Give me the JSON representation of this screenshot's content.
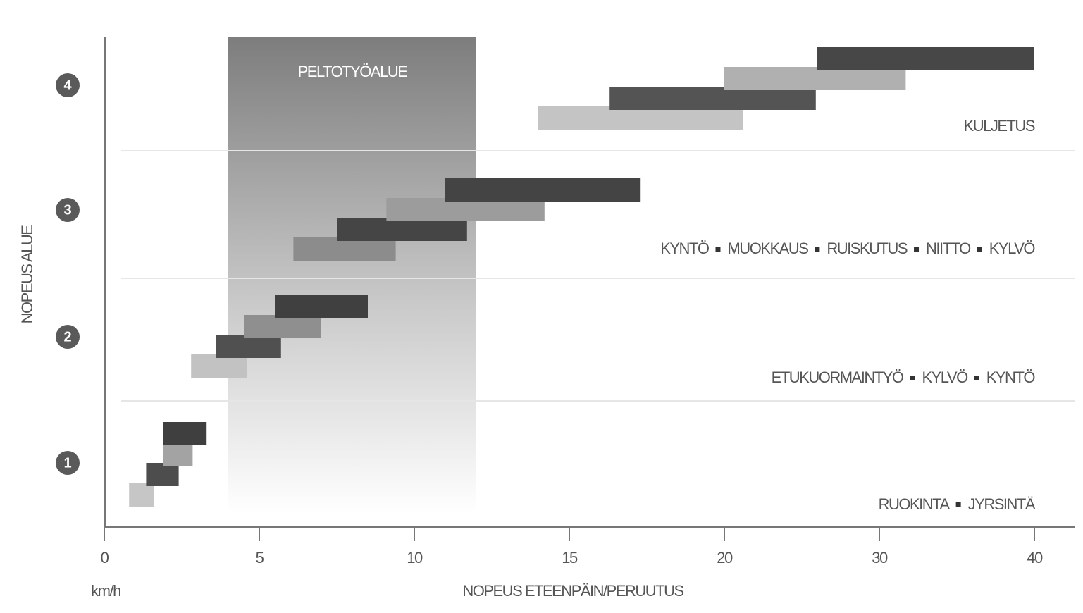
{
  "chart_data": {
    "type": "range-bar",
    "xlabel": "NOPEUS ETEENPÄIN/PERUUTUS",
    "xunit": "km/h",
    "ylabel": "NOPEUS ALUE",
    "xlim": [
      0,
      40
    ],
    "xticks": [
      0,
      5,
      10,
      15,
      20,
      30,
      40
    ],
    "region": {
      "label": "PELTOTYÖALUE",
      "start": 4,
      "end": 12
    },
    "groups": [
      {
        "label": "1",
        "items": [
          "RUOKINTA",
          "JYRSINTÄ"
        ],
        "bars": [
          {
            "start": 0.8,
            "end": 1.6,
            "color": "#c6c6c6"
          },
          {
            "start": 1.35,
            "end": 2.4,
            "color": "#4d4d4d"
          },
          {
            "start": 1.9,
            "end": 2.85,
            "color": "#a3a3a3"
          },
          {
            "start": 1.9,
            "end": 3.3,
            "color": "#3f3f3f"
          }
        ]
      },
      {
        "label": "2",
        "items": [
          "ETUKUORMAINTYÖ",
          "KYLVÖ",
          "KYNTÖ"
        ],
        "bars": [
          {
            "start": 2.8,
            "end": 4.6,
            "color": "#c2c2c2"
          },
          {
            "start": 3.6,
            "end": 5.7,
            "color": "#505050"
          },
          {
            "start": 4.5,
            "end": 7.0,
            "color": "#8f8f8f"
          },
          {
            "start": 5.5,
            "end": 8.5,
            "color": "#404040"
          }
        ]
      },
      {
        "label": "3",
        "items": [
          "KYNTÖ",
          "MUOKKAUS",
          "RUISKUTUS",
          "NIITTO",
          "KYLVÖ"
        ],
        "bars": [
          {
            "start": 6.1,
            "end": 9.4,
            "color": "#8c8c8c"
          },
          {
            "start": 7.5,
            "end": 11.7,
            "color": "#454545"
          },
          {
            "start": 9.1,
            "end": 14.2,
            "color": "#9c9c9c"
          },
          {
            "start": 11.0,
            "end": 17.3,
            "color": "#444444"
          }
        ]
      },
      {
        "label": "4",
        "items": [
          "KULJETUS"
        ],
        "bars": [
          {
            "start": 14.0,
            "end": 21.2,
            "color": "#c4c4c4"
          },
          {
            "start": 16.3,
            "end": 25.9,
            "color": "#545454"
          },
          {
            "start": 20.0,
            "end": 31.7,
            "color": "#b0b0b0"
          },
          {
            "start": 26.0,
            "end": 40,
            "color": "#474747"
          }
        ]
      }
    ]
  }
}
